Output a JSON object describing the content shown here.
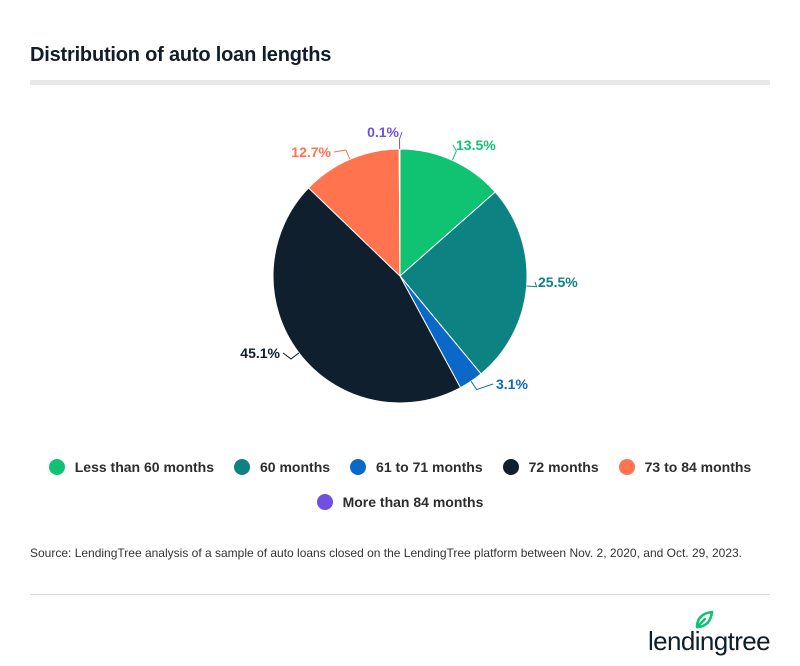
{
  "header": {
    "title": "Distribution of auto loan lengths"
  },
  "chart_data": {
    "type": "pie",
    "title": "Distribution of auto loan lengths",
    "slices": [
      {
        "name": "Less than 60 months",
        "value": 13.5,
        "label": "13.5%",
        "color": "#0fc373"
      },
      {
        "name": "60 months",
        "value": 25.5,
        "label": "25.5%",
        "color": "#0c8382"
      },
      {
        "name": "61 to 71 months",
        "value": 3.1,
        "label": "3.1%",
        "color": "#0a69c8"
      },
      {
        "name": "72 months",
        "value": 45.1,
        "label": "45.1%",
        "color": "#0f1f2e"
      },
      {
        "name": "73 to 84 months",
        "value": 12.7,
        "label": "12.7%",
        "color": "#ff744f"
      },
      {
        "name": "More than 84 months",
        "value": 0.1,
        "label": "0.1%",
        "color": "#7050e0"
      }
    ],
    "legend_placement": "bottom"
  },
  "legend": {
    "items": [
      {
        "label": "Less than 60 months",
        "color": "#0fc373"
      },
      {
        "label": "60 months",
        "color": "#0c8382"
      },
      {
        "label": "61 to 71 months",
        "color": "#0a69c8"
      },
      {
        "label": "72 months",
        "color": "#0f1f2e"
      },
      {
        "label": "73 to 84 months",
        "color": "#ff744f"
      },
      {
        "label": "More than 84 months",
        "color": "#7050e0"
      }
    ]
  },
  "footer": {
    "source": "Source: LendingTree analysis of a sample of auto loans closed on the LendingTree platform between Nov. 2, 2020, and Oct. 29, 2023.",
    "logo_text": "lendingtree",
    "logo_icon": "leaf-icon",
    "logo_color": "#0fc373"
  }
}
